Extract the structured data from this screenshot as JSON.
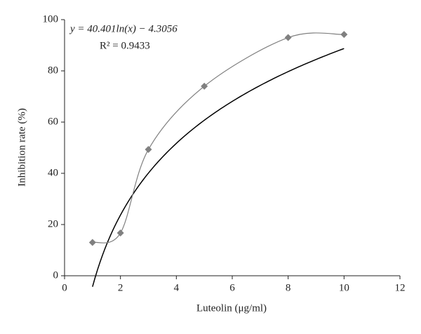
{
  "chart_data": {
    "type": "scatter-smooth",
    "x_label": "Luteolin (μg/ml)",
    "y_label": "Inhibition rate (%)",
    "x": [
      1,
      2,
      3,
      5,
      8,
      10
    ],
    "values": [
      13,
      16.7,
      49.3,
      74,
      93,
      94.2
    ],
    "color": "#808080",
    "xlim": [
      0,
      12
    ],
    "xticks": [
      0,
      2,
      4,
      6,
      8,
      10,
      12
    ],
    "ylim": [
      0,
      100
    ],
    "yticks": [
      0,
      20,
      40,
      60,
      80,
      100
    ],
    "trendline": {
      "kind": "log",
      "a": 40.401,
      "b": -4.3056,
      "color": "#000000",
      "equation": "y = 40.401ln(x) − 4.3056",
      "r_squared": "R² = 0.9433"
    }
  }
}
